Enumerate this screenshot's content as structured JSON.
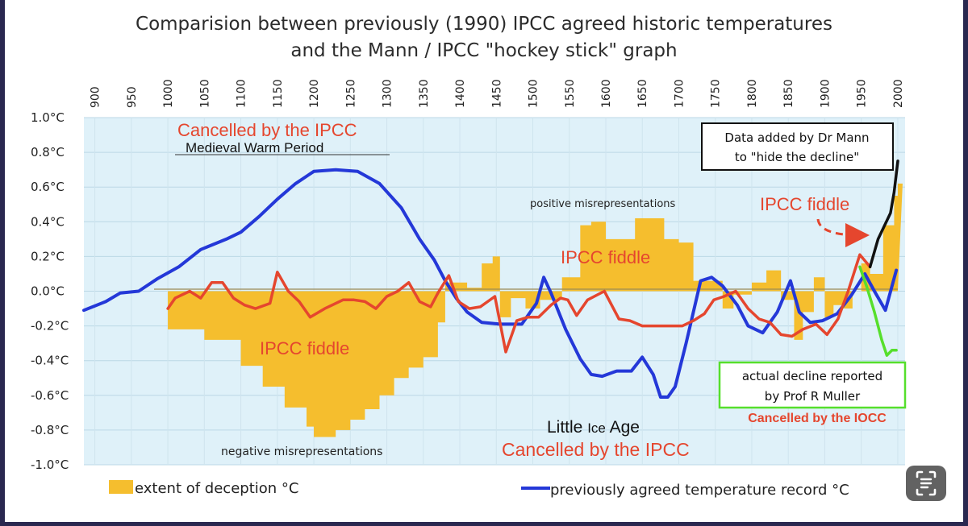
{
  "title_line1": "Comparision between previously (1990) IPCC agreed historic temperatures",
  "title_line2": "and the Mann / IPCC \"hockey stick\" graph",
  "colors": {
    "deception": "#f5be2e",
    "mann": "#e5462e",
    "agreed": "#2438d8",
    "added": "#111111",
    "muller": "#56df2c",
    "plot_bg": "#dff1f9",
    "red_text": "#e5462e"
  },
  "annotations": {
    "cancelled_mwp": "Cancelled by the IPCC",
    "mwp": "Medieval Warm Period",
    "pos_mis": "positive misrepresentations",
    "neg_mis": "negative misrepresentations",
    "fiddle_left": "IPCC  fiddle",
    "fiddle_mid": "IPCC  fiddle",
    "fiddle_right": "IPCC  fiddle",
    "mann_box_1": "Data added by Dr Mann",
    "mann_box_2": "to \"hide the decline\"",
    "muller_box_1": "actual decline reported",
    "muller_box_2": "by Prof R Muller",
    "cancelled_iocc": "Cancelled by the IOCC",
    "lia_1": "Little ",
    "lia_2": "Ice",
    "lia_3": " Age",
    "cancelled_lia": "Cancelled by the IPCC"
  },
  "legend": {
    "deception": "extent of deception °C",
    "agreed": "previously agreed temperature record °C"
  },
  "chart_data": {
    "type": "line",
    "xlim": [
      885,
      2010
    ],
    "ylim": [
      -1.0,
      1.0
    ],
    "x_ticks": [
      900,
      950,
      1000,
      1050,
      1100,
      1150,
      1200,
      1250,
      1300,
      1350,
      1400,
      1450,
      1500,
      1550,
      1600,
      1650,
      1700,
      1750,
      1800,
      1850,
      1900,
      1950,
      2000
    ],
    "y_ticks": [
      {
        "value": 1.0,
        "label": "1.0°C"
      },
      {
        "value": 0.8,
        "label": "0.8°C"
      },
      {
        "value": 0.6,
        "label": "0.6°C"
      },
      {
        "value": 0.4,
        "label": "0.4°C"
      },
      {
        "value": 0.2,
        "label": "0.2°C"
      },
      {
        "value": 0.0,
        "label": "0.0°C"
      },
      {
        "value": -0.2,
        "label": "-0.2°C"
      },
      {
        "value": -0.4,
        "label": "-0.4°C"
      },
      {
        "value": -0.6,
        "label": "-0.6°C"
      },
      {
        "value": -0.8,
        "label": "-0.8°C"
      },
      {
        "value": -1.0,
        "label": "-1.0°C"
      }
    ],
    "grid": true,
    "legend_position": "bottom",
    "series": [
      {
        "name": "previously agreed temperature record °C",
        "x": [
          885,
          915,
          935,
          960,
          985,
          1015,
          1045,
          1080,
          1100,
          1125,
          1150,
          1175,
          1200,
          1230,
          1260,
          1290,
          1320,
          1345,
          1365,
          1380,
          1395,
          1410,
          1430,
          1455,
          1485,
          1505,
          1515,
          1525,
          1545,
          1565,
          1580,
          1595,
          1615,
          1635,
          1650,
          1665,
          1675,
          1685,
          1695,
          1710,
          1730,
          1745,
          1760,
          1780,
          1795,
          1815,
          1835,
          1853,
          1865,
          1880,
          1897,
          1917,
          1937,
          1955,
          1968,
          1983,
          1998
        ],
        "y": [
          -0.11,
          -0.06,
          -0.01,
          0.0,
          0.07,
          0.14,
          0.24,
          0.3,
          0.34,
          0.43,
          0.53,
          0.62,
          0.69,
          0.7,
          0.69,
          0.62,
          0.48,
          0.3,
          0.18,
          0.06,
          -0.04,
          -0.12,
          -0.18,
          -0.19,
          -0.19,
          -0.07,
          0.08,
          -0.01,
          -0.22,
          -0.39,
          -0.48,
          -0.49,
          -0.46,
          -0.46,
          -0.38,
          -0.48,
          -0.61,
          -0.61,
          -0.55,
          -0.3,
          0.06,
          0.08,
          0.03,
          -0.08,
          -0.2,
          -0.24,
          -0.12,
          0.06,
          -0.12,
          -0.18,
          -0.17,
          -0.13,
          -0.02,
          0.1,
          0.0,
          -0.11,
          0.12
        ]
      },
      {
        "name": "",
        "x": [
          1000,
          1010,
          1030,
          1045,
          1060,
          1075,
          1090,
          1105,
          1120,
          1140,
          1150,
          1165,
          1180,
          1195,
          1215,
          1240,
          1255,
          1270,
          1285,
          1300,
          1315,
          1330,
          1345,
          1360,
          1370,
          1385,
          1398,
          1413,
          1428,
          1448,
          1463,
          1478,
          1493,
          1508,
          1525,
          1538,
          1548,
          1560,
          1575,
          1598,
          1618,
          1633,
          1650,
          1668,
          1688,
          1705,
          1720,
          1735,
          1748,
          1762,
          1778,
          1795,
          1810,
          1825,
          1840,
          1855,
          1870,
          1888,
          1903,
          1918,
          1932,
          1948,
          1962
        ],
        "y": [
          -0.1,
          -0.04,
          0.0,
          -0.04,
          0.05,
          0.05,
          -0.04,
          -0.08,
          -0.1,
          -0.07,
          0.11,
          0.0,
          -0.06,
          -0.15,
          -0.1,
          -0.05,
          -0.05,
          -0.06,
          -0.1,
          -0.03,
          0.0,
          0.05,
          -0.06,
          -0.09,
          -0.01,
          0.09,
          -0.06,
          -0.1,
          -0.09,
          -0.03,
          -0.35,
          -0.17,
          -0.15,
          -0.15,
          -0.08,
          -0.04,
          -0.05,
          -0.14,
          -0.05,
          0.0,
          -0.16,
          -0.17,
          -0.2,
          -0.2,
          -0.2,
          -0.2,
          -0.17,
          -0.13,
          -0.05,
          -0.03,
          0.0,
          -0.1,
          -0.16,
          -0.18,
          -0.25,
          -0.26,
          -0.22,
          -0.19,
          -0.25,
          -0.16,
          0.0,
          0.21,
          0.14
        ]
      },
      {
        "name": "",
        "x": [
          1962,
          1973,
          1982,
          1990,
          1995,
          2000
        ],
        "y": [
          0.14,
          0.3,
          0.38,
          0.45,
          0.57,
          0.75
        ]
      },
      {
        "name": "",
        "x": [
          1948,
          1958,
          1968,
          1978,
          1985,
          1992,
          1998
        ],
        "y": [
          0.14,
          0.02,
          -0.12,
          -0.28,
          -0.37,
          -0.34,
          -0.34
        ]
      },
      {
        "name": "extent of deception °C",
        "type": "area",
        "x": [
          1000,
          1050,
          1100,
          1130,
          1160,
          1190,
          1200,
          1230,
          1250,
          1270,
          1290,
          1310,
          1330,
          1350,
          1370,
          1380,
          1410,
          1430,
          1445,
          1455,
          1470,
          1490,
          1510,
          1540,
          1565,
          1580,
          1600,
          1640,
          1660,
          1680,
          1700,
          1720,
          1760,
          1775,
          1800,
          1820,
          1840,
          1858,
          1870,
          1885,
          1900,
          1912,
          1925,
          1938,
          1950,
          1962,
          1980,
          1995,
          2000
        ],
        "y": [
          -0.22,
          -0.28,
          -0.43,
          -0.55,
          -0.67,
          -0.78,
          -0.84,
          -0.8,
          -0.74,
          -0.68,
          -0.6,
          -0.5,
          -0.44,
          -0.38,
          -0.18,
          0.05,
          0.02,
          0.16,
          0.2,
          -0.15,
          -0.04,
          -0.1,
          -0.05,
          0.08,
          0.38,
          0.4,
          0.3,
          0.42,
          0.42,
          0.3,
          0.28,
          0.06,
          -0.1,
          -0.02,
          0.05,
          0.12,
          -0.05,
          -0.28,
          -0.12,
          0.08,
          -0.15,
          -0.08,
          -0.1,
          0.0,
          0.16,
          0.1,
          0.38,
          0.55,
          0.62
        ]
      }
    ]
  }
}
